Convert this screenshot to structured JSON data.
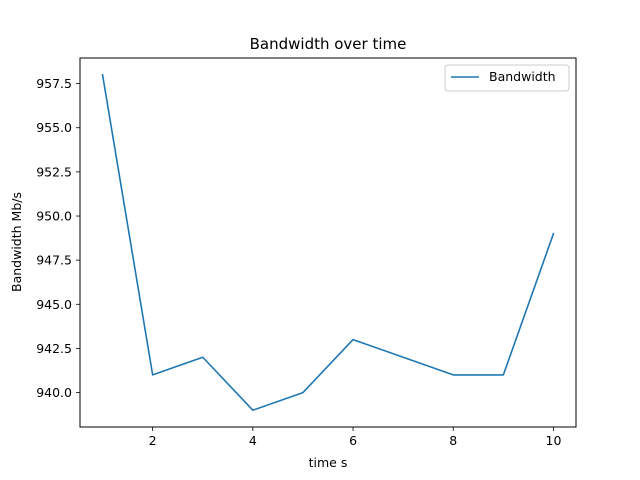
{
  "chart_data": {
    "type": "line",
    "title": "Bandwidth over time",
    "xlabel": "time s",
    "ylabel": "Bandwidth Mb/s",
    "xlim": [
      0.55,
      10.45
    ],
    "ylim": [
      938.05,
      958.95
    ],
    "xticks": [
      2,
      4,
      6,
      8,
      10
    ],
    "xtick_labels": [
      "2",
      "4",
      "6",
      "8",
      "10"
    ],
    "yticks": [
      940.0,
      942.5,
      945.0,
      947.5,
      950.0,
      952.5,
      955.0,
      957.5
    ],
    "ytick_labels": [
      "940.0",
      "942.5",
      "945.0",
      "947.5",
      "950.0",
      "952.5",
      "955.0",
      "957.5"
    ],
    "grid": false,
    "legend_position": "top-right",
    "series": [
      {
        "name": "Bandwidth",
        "color": "#1f77b4",
        "x": [
          1,
          2,
          3,
          4,
          5,
          6,
          7,
          8,
          9,
          10
        ],
        "y": [
          958,
          941,
          942,
          939,
          940,
          943,
          942,
          941,
          941,
          949
        ]
      }
    ]
  }
}
